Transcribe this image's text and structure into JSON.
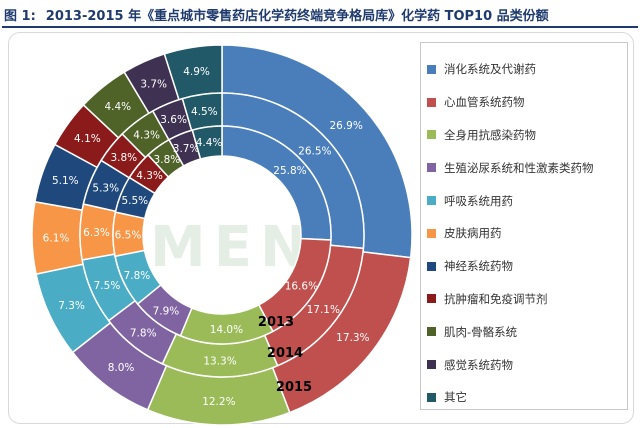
{
  "header": {
    "figure_label": "图 1:",
    "title": "2013-2015 年《重点城市零售药店化学药终端竞争格局库》化学药 TOP10 品类份额"
  },
  "watermark": "MENET",
  "chart_data": {
    "type": "pie",
    "variant": "multi-ring-donut",
    "title": "2013-2015 年《重点城市零售药店化学药终端竞争格局库》化学药 TOP10 品类份额",
    "categories": [
      "消化系统及代谢药",
      "心血管系统药物",
      "全身用抗感染药物",
      "生殖泌尿系统和性激素类药物",
      "呼吸系统用药",
      "皮肤病用药",
      "神经系统药物",
      "抗肿瘤和免疫调节剂",
      "肌肉-骨骼系统",
      "感觉系统药物",
      "其它"
    ],
    "colors": [
      "#4a7ebb",
      "#c0504d",
      "#9bbb59",
      "#8064a2",
      "#4bacc6",
      "#f79646",
      "#1f497d",
      "#8b1a1a",
      "#4f6228",
      "#3f3151",
      "#215968"
    ],
    "series": [
      {
        "name": "2015",
        "values": [
          26.9,
          17.3,
          12.2,
          8.0,
          7.3,
          6.1,
          5.1,
          4.1,
          4.4,
          3.7,
          4.9
        ]
      },
      {
        "name": "2014",
        "values": [
          26.5,
          17.1,
          13.3,
          7.8,
          7.5,
          6.3,
          5.3,
          3.8,
          4.3,
          3.6,
          4.5
        ]
      },
      {
        "name": "2013",
        "values": [
          25.8,
          16.6,
          14.0,
          7.9,
          7.8,
          6.5,
          5.5,
          4.3,
          3.8,
          3.7,
          4.4
        ]
      }
    ],
    "value_labels_visible": [
      [
        "26.9%",
        "17.3%",
        "12.2%",
        "8.0%",
        "7.3%",
        "6.1%",
        "5.1%",
        "4.1%",
        "4.4%",
        "3.7%",
        "4.9%"
      ],
      [
        "26.5%",
        "17.1%",
        "13.3%",
        "7.8%",
        "7.5%",
        "6.3%",
        "5.3%",
        "3.8%",
        "4.3%",
        "3.6%",
        "4.5%"
      ],
      [
        "25.8%",
        "16.6%",
        "14.0%",
        "7.9%",
        "7.8%",
        "6.5%",
        "5.5%",
        "4.3%",
        "3.8%",
        "3.7%",
        "4.4%"
      ]
    ],
    "unit": "%",
    "legend_position": "right"
  }
}
